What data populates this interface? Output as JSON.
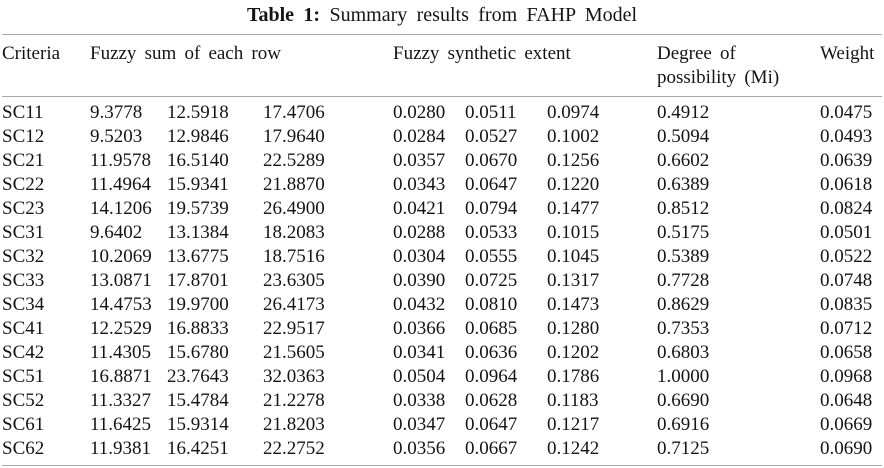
{
  "caption": {
    "label": "Table 1:",
    "text": "Summary results from FAHP Model"
  },
  "table": {
    "headers": {
      "criteria": "Criteria",
      "fuzzy_sum": "Fuzzy sum of each row",
      "fuzzy_synthetic": "Fuzzy synthetic extent",
      "degree": "Degree of possibility (Mi)",
      "weight": "Weight"
    },
    "rows": [
      {
        "criteria": "SC11",
        "fuzzy_sum": [
          "9.3778",
          "12.5918",
          "17.4706"
        ],
        "fuzzy_synthetic": [
          "0.0280",
          "0.0511",
          "0.0974"
        ],
        "degree": "0.4912",
        "weight": "0.0475"
      },
      {
        "criteria": "SC12",
        "fuzzy_sum": [
          "9.5203",
          "12.9846",
          "17.9640"
        ],
        "fuzzy_synthetic": [
          "0.0284",
          "0.0527",
          "0.1002"
        ],
        "degree": "0.5094",
        "weight": "0.0493"
      },
      {
        "criteria": "SC21",
        "fuzzy_sum": [
          "11.9578",
          "16.5140",
          "22.5289"
        ],
        "fuzzy_synthetic": [
          "0.0357",
          "0.0670",
          "0.1256"
        ],
        "degree": "0.6602",
        "weight": "0.0639"
      },
      {
        "criteria": "SC22",
        "fuzzy_sum": [
          "11.4964",
          "15.9341",
          "21.8870"
        ],
        "fuzzy_synthetic": [
          "0.0343",
          "0.0647",
          "0.1220"
        ],
        "degree": "0.6389",
        "weight": "0.0618"
      },
      {
        "criteria": "SC23",
        "fuzzy_sum": [
          "14.1206",
          "19.5739",
          "26.4900"
        ],
        "fuzzy_synthetic": [
          "0.0421",
          "0.0794",
          "0.1477"
        ],
        "degree": "0.8512",
        "weight": "0.0824"
      },
      {
        "criteria": "SC31",
        "fuzzy_sum": [
          "9.6402",
          "13.1384",
          "18.2083"
        ],
        "fuzzy_synthetic": [
          "0.0288",
          "0.0533",
          "0.1015"
        ],
        "degree": "0.5175",
        "weight": "0.0501"
      },
      {
        "criteria": "SC32",
        "fuzzy_sum": [
          "10.2069",
          "13.6775",
          "18.7516"
        ],
        "fuzzy_synthetic": [
          "0.0304",
          "0.0555",
          "0.1045"
        ],
        "degree": "0.5389",
        "weight": "0.0522"
      },
      {
        "criteria": "SC33",
        "fuzzy_sum": [
          "13.0871",
          "17.8701",
          "23.6305"
        ],
        "fuzzy_synthetic": [
          "0.0390",
          "0.0725",
          "0.1317"
        ],
        "degree": "0.7728",
        "weight": "0.0748"
      },
      {
        "criteria": "SC34",
        "fuzzy_sum": [
          "14.4753",
          "19.9700",
          "26.4173"
        ],
        "fuzzy_synthetic": [
          "0.0432",
          "0.0810",
          "0.1473"
        ],
        "degree": "0.8629",
        "weight": "0.0835"
      },
      {
        "criteria": "SC41",
        "fuzzy_sum": [
          "12.2529",
          "16.8833",
          "22.9517"
        ],
        "fuzzy_synthetic": [
          "0.0366",
          "0.0685",
          "0.1280"
        ],
        "degree": "0.7353",
        "weight": "0.0712"
      },
      {
        "criteria": "SC42",
        "fuzzy_sum": [
          "11.4305",
          "15.6780",
          "21.5605"
        ],
        "fuzzy_synthetic": [
          "0.0341",
          "0.0636",
          "0.1202"
        ],
        "degree": "0.6803",
        "weight": "0.0658"
      },
      {
        "criteria": "SC51",
        "fuzzy_sum": [
          "16.8871",
          "23.7643",
          "32.0363"
        ],
        "fuzzy_synthetic": [
          "0.0504",
          "0.0964",
          "0.1786"
        ],
        "degree": "1.0000",
        "weight": "0.0968"
      },
      {
        "criteria": "SC52",
        "fuzzy_sum": [
          "11.3327",
          "15.4784",
          "21.2278"
        ],
        "fuzzy_synthetic": [
          "0.0338",
          "0.0628",
          "0.1183"
        ],
        "degree": "0.6690",
        "weight": "0.0648"
      },
      {
        "criteria": "SC61",
        "fuzzy_sum": [
          "11.6425",
          "15.9314",
          "21.8203"
        ],
        "fuzzy_synthetic": [
          "0.0347",
          "0.0647",
          "0.1217"
        ],
        "degree": "0.6916",
        "weight": "0.0669"
      },
      {
        "criteria": "SC62",
        "fuzzy_sum": [
          "11.9381",
          "16.4251",
          "22.2752"
        ],
        "fuzzy_synthetic": [
          "0.0356",
          "0.0667",
          "0.1242"
        ],
        "degree": "0.7125",
        "weight": "0.0690"
      }
    ]
  },
  "colors": {
    "rule": "#a8a8a8",
    "text": "#141414",
    "background": "#ffffff"
  }
}
